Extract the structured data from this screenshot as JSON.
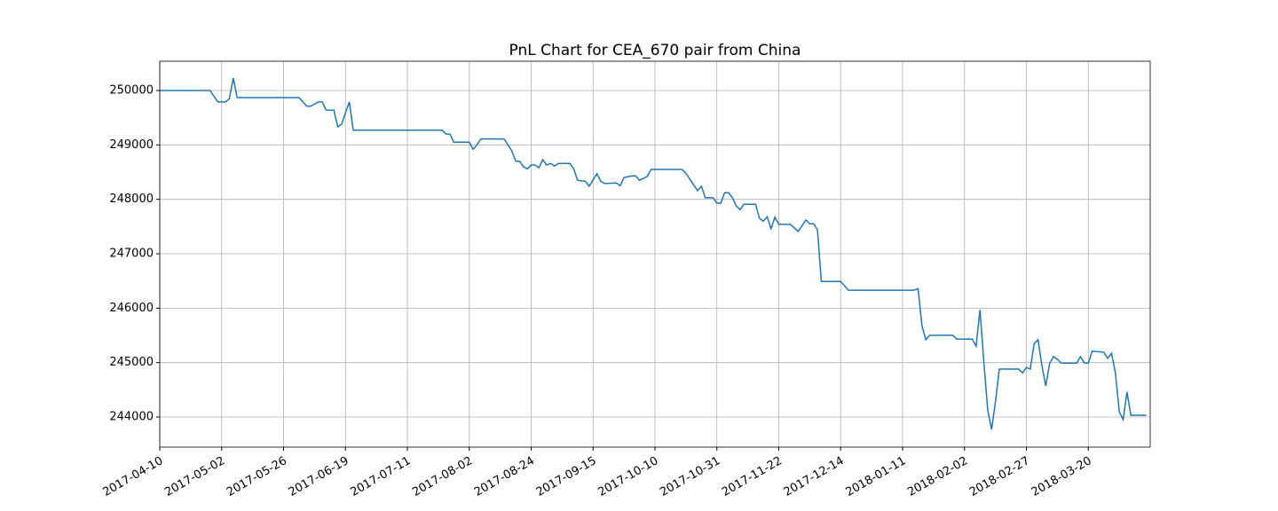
{
  "chart_data": {
    "type": "line",
    "title": "PnL Chart for CEA_670 pair from China",
    "grid": true,
    "xlim": [
      0,
      256
    ],
    "ylim": [
      243446,
      250538
    ],
    "yticks": [
      244000,
      245000,
      246000,
      247000,
      248000,
      249000,
      250000
    ],
    "xticks": [
      {
        "value": 0,
        "label": "2017-04-10"
      },
      {
        "value": 16,
        "label": "2017-05-02"
      },
      {
        "value": 32,
        "label": "2017-05-26"
      },
      {
        "value": 48,
        "label": "2017-06-19"
      },
      {
        "value": 64,
        "label": "2017-07-11"
      },
      {
        "value": 80,
        "label": "2017-08-02"
      },
      {
        "value": 96,
        "label": "2017-08-24"
      },
      {
        "value": 112,
        "label": "2017-09-15"
      },
      {
        "value": 128,
        "label": "2017-10-10"
      },
      {
        "value": 144,
        "label": "2017-10-31"
      },
      {
        "value": 160,
        "label": "2017-11-22"
      },
      {
        "value": 176,
        "label": "2017-12-14"
      },
      {
        "value": 192,
        "label": "2018-01-11"
      },
      {
        "value": 208,
        "label": "2018-02-02"
      },
      {
        "value": 224,
        "label": "2018-02-27"
      },
      {
        "value": 240,
        "label": "2018-03-20"
      }
    ],
    "series": [
      {
        "color": "#1f77b4",
        "x": [
          0,
          13,
          15,
          17,
          18,
          19,
          20,
          36,
          38,
          39,
          41,
          42,
          43,
          45,
          46,
          47,
          49,
          50,
          73,
          74,
          75,
          76,
          80,
          81,
          82,
          83,
          89,
          91,
          92,
          93,
          94,
          95,
          96,
          97,
          98,
          99,
          100,
          101,
          102,
          103,
          106,
          107,
          108,
          110,
          111,
          113,
          114,
          115,
          118,
          119,
          120,
          122,
          123,
          124,
          126,
          127,
          135,
          136,
          137,
          139,
          140,
          141,
          143,
          144,
          145,
          146,
          147,
          148,
          149,
          150,
          151,
          154,
          155,
          156,
          157,
          158,
          159,
          160,
          163,
          165,
          167,
          168,
          169,
          170,
          171,
          176,
          177,
          178,
          195,
          196,
          197,
          198,
          199,
          205,
          206,
          210,
          211,
          212,
          213,
          214,
          215,
          216,
          217,
          222,
          223,
          224,
          225,
          226,
          227,
          228,
          229,
          230,
          231,
          232,
          233,
          237,
          238,
          239,
          240,
          241,
          244,
          245,
          246,
          247,
          248,
          249,
          250,
          251,
          255
        ],
        "values": [
          250000,
          250000,
          249790,
          249790,
          249850,
          250230,
          249870,
          249870,
          249710,
          249710,
          249790,
          249790,
          249640,
          249640,
          249330,
          249380,
          249790,
          249270,
          249270,
          249200,
          249200,
          249050,
          249050,
          248920,
          249000,
          249110,
          249110,
          248890,
          248700,
          248700,
          248600,
          248560,
          248630,
          248630,
          248580,
          248730,
          248630,
          248660,
          248610,
          248660,
          248660,
          248560,
          248350,
          248330,
          248240,
          248470,
          248330,
          248290,
          248300,
          248250,
          248400,
          248430,
          248430,
          248350,
          248420,
          248550,
          248550,
          248480,
          248370,
          248160,
          248240,
          248030,
          248030,
          247930,
          247930,
          248120,
          248120,
          248030,
          247880,
          247810,
          247910,
          247910,
          247650,
          247600,
          247680,
          247460,
          247670,
          247540,
          247540,
          247410,
          247620,
          247550,
          247550,
          247440,
          246490,
          246490,
          246410,
          246330,
          246330,
          246360,
          245680,
          245420,
          245500,
          245500,
          245430,
          245430,
          245300,
          245970,
          245010,
          244130,
          243770,
          244280,
          244880,
          244880,
          244810,
          244910,
          244880,
          245350,
          245420,
          244950,
          244570,
          244980,
          245110,
          245060,
          244990,
          244990,
          245110,
          244990,
          244990,
          245210,
          245190,
          245080,
          245170,
          244810,
          244100,
          243950,
          244460,
          244030,
          244030
        ]
      }
    ]
  }
}
